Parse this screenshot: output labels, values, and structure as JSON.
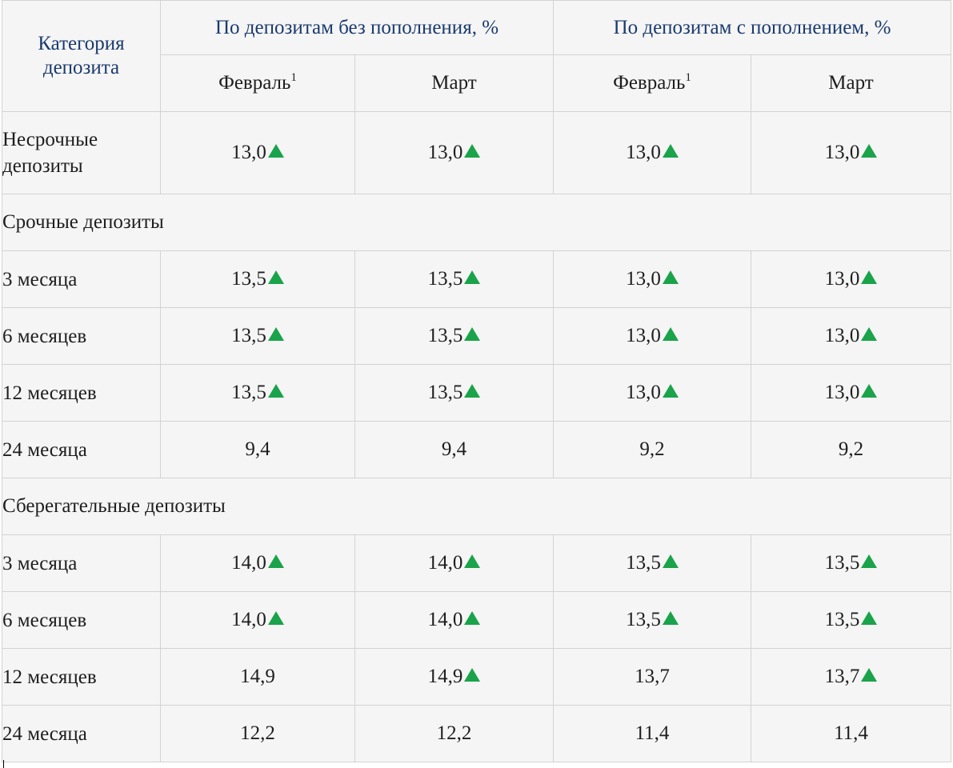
{
  "table": {
    "category_header": "Категория депозита",
    "groups": [
      "По депозитам без пополнения, %",
      "По депозитам с пополнением, %"
    ],
    "months": [
      {
        "label": "Февраль",
        "sup": "1"
      },
      {
        "label": "Март",
        "sup": ""
      },
      {
        "label": "Февраль",
        "sup": "1"
      },
      {
        "label": "Март",
        "sup": ""
      }
    ],
    "indicator_color": "#1aa34a",
    "indicator_icon": "green-up-triangle",
    "rows": [
      {
        "type": "data",
        "label": "Несрочные депозиты",
        "values": [
          "13,0",
          "13,0",
          "13,0",
          "13,0"
        ],
        "up": [
          true,
          true,
          true,
          true
        ]
      },
      {
        "type": "section",
        "label": "Срочные депозиты"
      },
      {
        "type": "data",
        "label": "3 месяца",
        "values": [
          "13,5",
          "13,5",
          "13,0",
          "13,0"
        ],
        "up": [
          true,
          true,
          true,
          true
        ]
      },
      {
        "type": "data",
        "label": "6 месяцев",
        "values": [
          "13,5",
          "13,5",
          "13,0",
          "13,0"
        ],
        "up": [
          true,
          true,
          true,
          true
        ]
      },
      {
        "type": "data",
        "label": "12 месяцев",
        "values": [
          "13,5",
          "13,5",
          "13,0",
          "13,0"
        ],
        "up": [
          true,
          true,
          true,
          true
        ]
      },
      {
        "type": "data",
        "label": "24 месяца",
        "values": [
          "9,4",
          "9,4",
          "9,2",
          "9,2"
        ],
        "up": [
          false,
          false,
          false,
          false
        ]
      },
      {
        "type": "section",
        "label": "Сберегательные депозиты"
      },
      {
        "type": "data",
        "label": "3 месяца",
        "values": [
          "14,0",
          "14,0",
          "13,5",
          "13,5"
        ],
        "up": [
          true,
          true,
          true,
          true
        ]
      },
      {
        "type": "data",
        "label": "6 месяцев",
        "values": [
          "14,0",
          "14,0",
          "13,5",
          "13,5"
        ],
        "up": [
          true,
          true,
          true,
          true
        ]
      },
      {
        "type": "data",
        "label": "12 месяцев",
        "values": [
          "14,9",
          "14,9",
          "13,7",
          "13,7"
        ],
        "up": [
          false,
          true,
          false,
          true
        ]
      },
      {
        "type": "data",
        "label": "24 месяца",
        "values": [
          "12,2",
          "12,2",
          "11,4",
          "11,4"
        ],
        "up": [
          false,
          false,
          false,
          false
        ]
      }
    ]
  }
}
